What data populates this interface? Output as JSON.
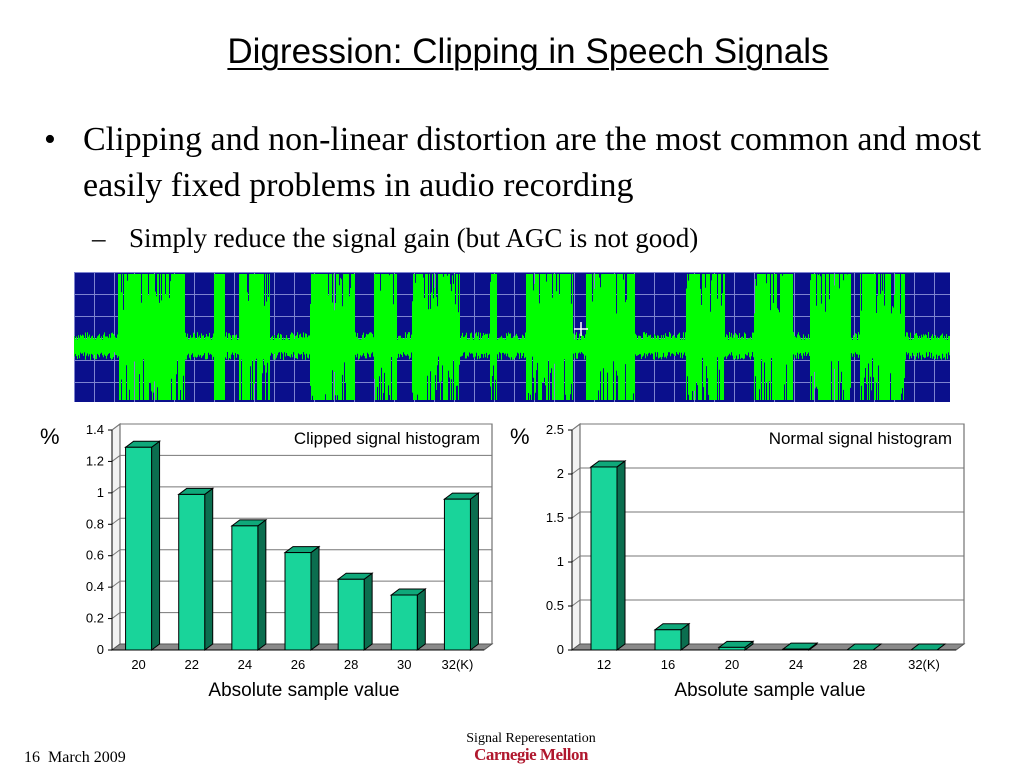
{
  "slide": {
    "title": "Digression: Clipping in Speech Signals",
    "bullet": {
      "marker": "•",
      "text": "Clipping and non-linear distortion are the most common and most easily fixed problems in audio recording"
    },
    "subbullet": {
      "marker": "–",
      "text": "Simply reduce the signal gain (but AGC is not good)"
    },
    "waveform": {
      "background_color": "#0a0f8c",
      "wave_color": "#00ff00",
      "grid_color": "#9aa0e0"
    },
    "footer": {
      "date": "16  March 2009",
      "course": "Signal Reperesentation",
      "logo": "Carnegie Mellon"
    }
  },
  "chart_data": [
    {
      "type": "bar",
      "title": "Clipped signal histogram",
      "ylabel": "%",
      "xlabel": "Absolute sample value",
      "categories": [
        "20",
        "22",
        "24",
        "26",
        "28",
        "30",
        "32(K)"
      ],
      "values": [
        1.29,
        0.99,
        0.79,
        0.62,
        0.45,
        0.35,
        0.96
      ],
      "ylim": [
        0,
        1.4
      ],
      "yticks": [
        "0",
        "0.2",
        "0.4",
        "0.6",
        "0.8",
        "1",
        "1.2",
        "1.4"
      ],
      "grid": true,
      "bar_color": "#19d49a"
    },
    {
      "type": "bar",
      "title": "Normal signal histogram",
      "ylabel": "%",
      "xlabel": "Absolute sample value",
      "categories": [
        "12",
        "16",
        "20",
        "24",
        "28",
        "32(K)"
      ],
      "values": [
        2.08,
        0.23,
        0.03,
        0.01,
        0.0,
        0.0
      ],
      "ylim": [
        0,
        2.5
      ],
      "yticks": [
        "0",
        "0.5",
        "1",
        "1.5",
        "2",
        "2.5"
      ],
      "grid": true,
      "bar_color": "#19d49a"
    }
  ]
}
